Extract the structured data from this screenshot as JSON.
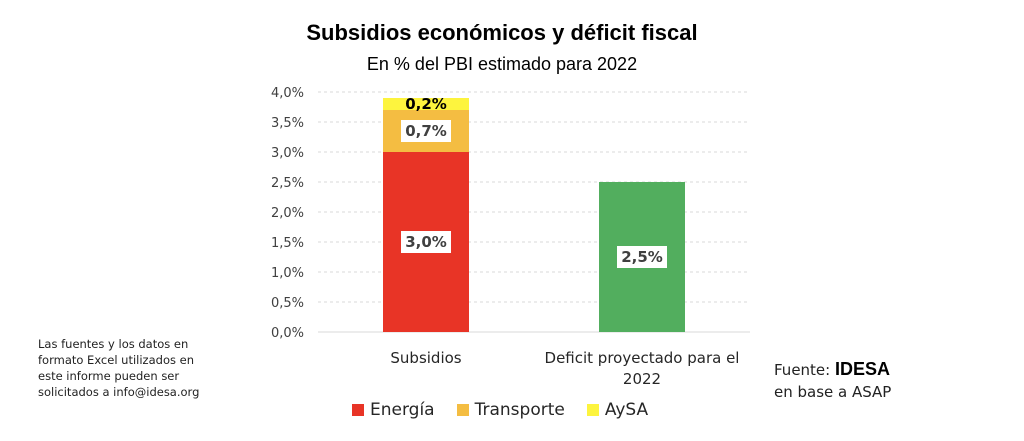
{
  "chart_data": {
    "type": "bar",
    "stacked": true,
    "title": "Subsidios económicos y déficit fiscal",
    "subtitle": "En % del PBI estimado para 2022",
    "xlabel": "",
    "ylabel": "",
    "ylim": [
      0,
      4.0
    ],
    "yticks": [
      "0,0%",
      "0,5%",
      "1,0%",
      "1,5%",
      "2,0%",
      "2,5%",
      "3,0%",
      "3,5%",
      "4,0%"
    ],
    "ytick_values": [
      0,
      0.5,
      1.0,
      1.5,
      2.0,
      2.5,
      3.0,
      3.5,
      4.0
    ],
    "grid": true,
    "categories": [
      "Subsidios",
      "Deficit proyectado para el 2022"
    ],
    "category_lines": [
      [
        "Subsidios"
      ],
      [
        "Deficit proyectado para el",
        "2022"
      ]
    ],
    "series": [
      {
        "name": "Energía",
        "color": "#E83426",
        "values": [
          3.0,
          null
        ],
        "labels": [
          "3,0%",
          null
        ]
      },
      {
        "name": "Transporte",
        "color": "#F4BD42",
        "values": [
          0.7,
          null
        ],
        "labels": [
          "0,7%",
          null
        ]
      },
      {
        "name": "AySA",
        "color": "#FDF43E",
        "values": [
          0.2,
          null
        ],
        "labels": [
          "0,2%",
          null
        ]
      },
      {
        "name": "Déficit",
        "color": "#52AE5E",
        "values": [
          null,
          2.5
        ],
        "labels": [
          null,
          "2,5%"
        ],
        "in_legend": false
      }
    ],
    "legend": {
      "position": "bottom",
      "entries": [
        "Energía",
        "Transporte",
        "AySA"
      ]
    }
  },
  "note": {
    "lines": [
      "Las fuentes y los datos en",
      "formato Excel utilizados en",
      "este informe pueden ser",
      "solicitados a info@idesa.org"
    ]
  },
  "source": {
    "prefix": "Fuente: ",
    "brand": "IDESA",
    "line2": "en base a ASAP"
  }
}
